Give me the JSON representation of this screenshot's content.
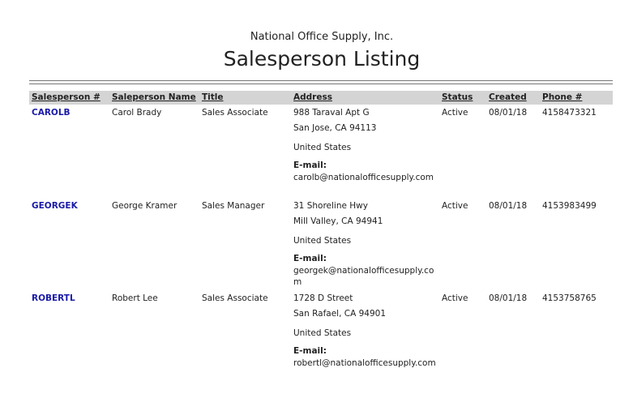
{
  "report": {
    "company": "National Office Supply, Inc.",
    "title": "Salesperson Listing"
  },
  "columns": [
    "Salesperson #",
    "Saleperson Name",
    "Title",
    "Address",
    "Status",
    "Created",
    "Phone #"
  ],
  "email_label": "E-mail:",
  "rows": [
    {
      "id": "CAROLB",
      "name": "Carol Brady",
      "title": "Sales Associate",
      "address1": "988 Taraval Apt G",
      "address2": "San Jose, CA 94113",
      "country": "United States",
      "email": "carolb@nationalofficesupply.com",
      "status": "Active",
      "created": "08/01/18",
      "phone": "4158473321"
    },
    {
      "id": "GEORGEK",
      "name": "George Kramer",
      "title": "Sales Manager",
      "address1": "31 Shoreline Hwy",
      "address2": "Mill Valley, CA 94941",
      "country": "United States",
      "email": "georgek@nationalofficesupply.com",
      "status": "Active",
      "created": "08/01/18",
      "phone": "4153983499"
    },
    {
      "id": "ROBERTL",
      "name": "Robert Lee",
      "title": "Sales Associate",
      "address1": "1728 D Street",
      "address2": "San Rafael, CA 94901",
      "country": "United States",
      "email": "robertl@nationalofficesupply.com",
      "status": "Active",
      "created": "08/01/18",
      "phone": "4153758765"
    }
  ]
}
